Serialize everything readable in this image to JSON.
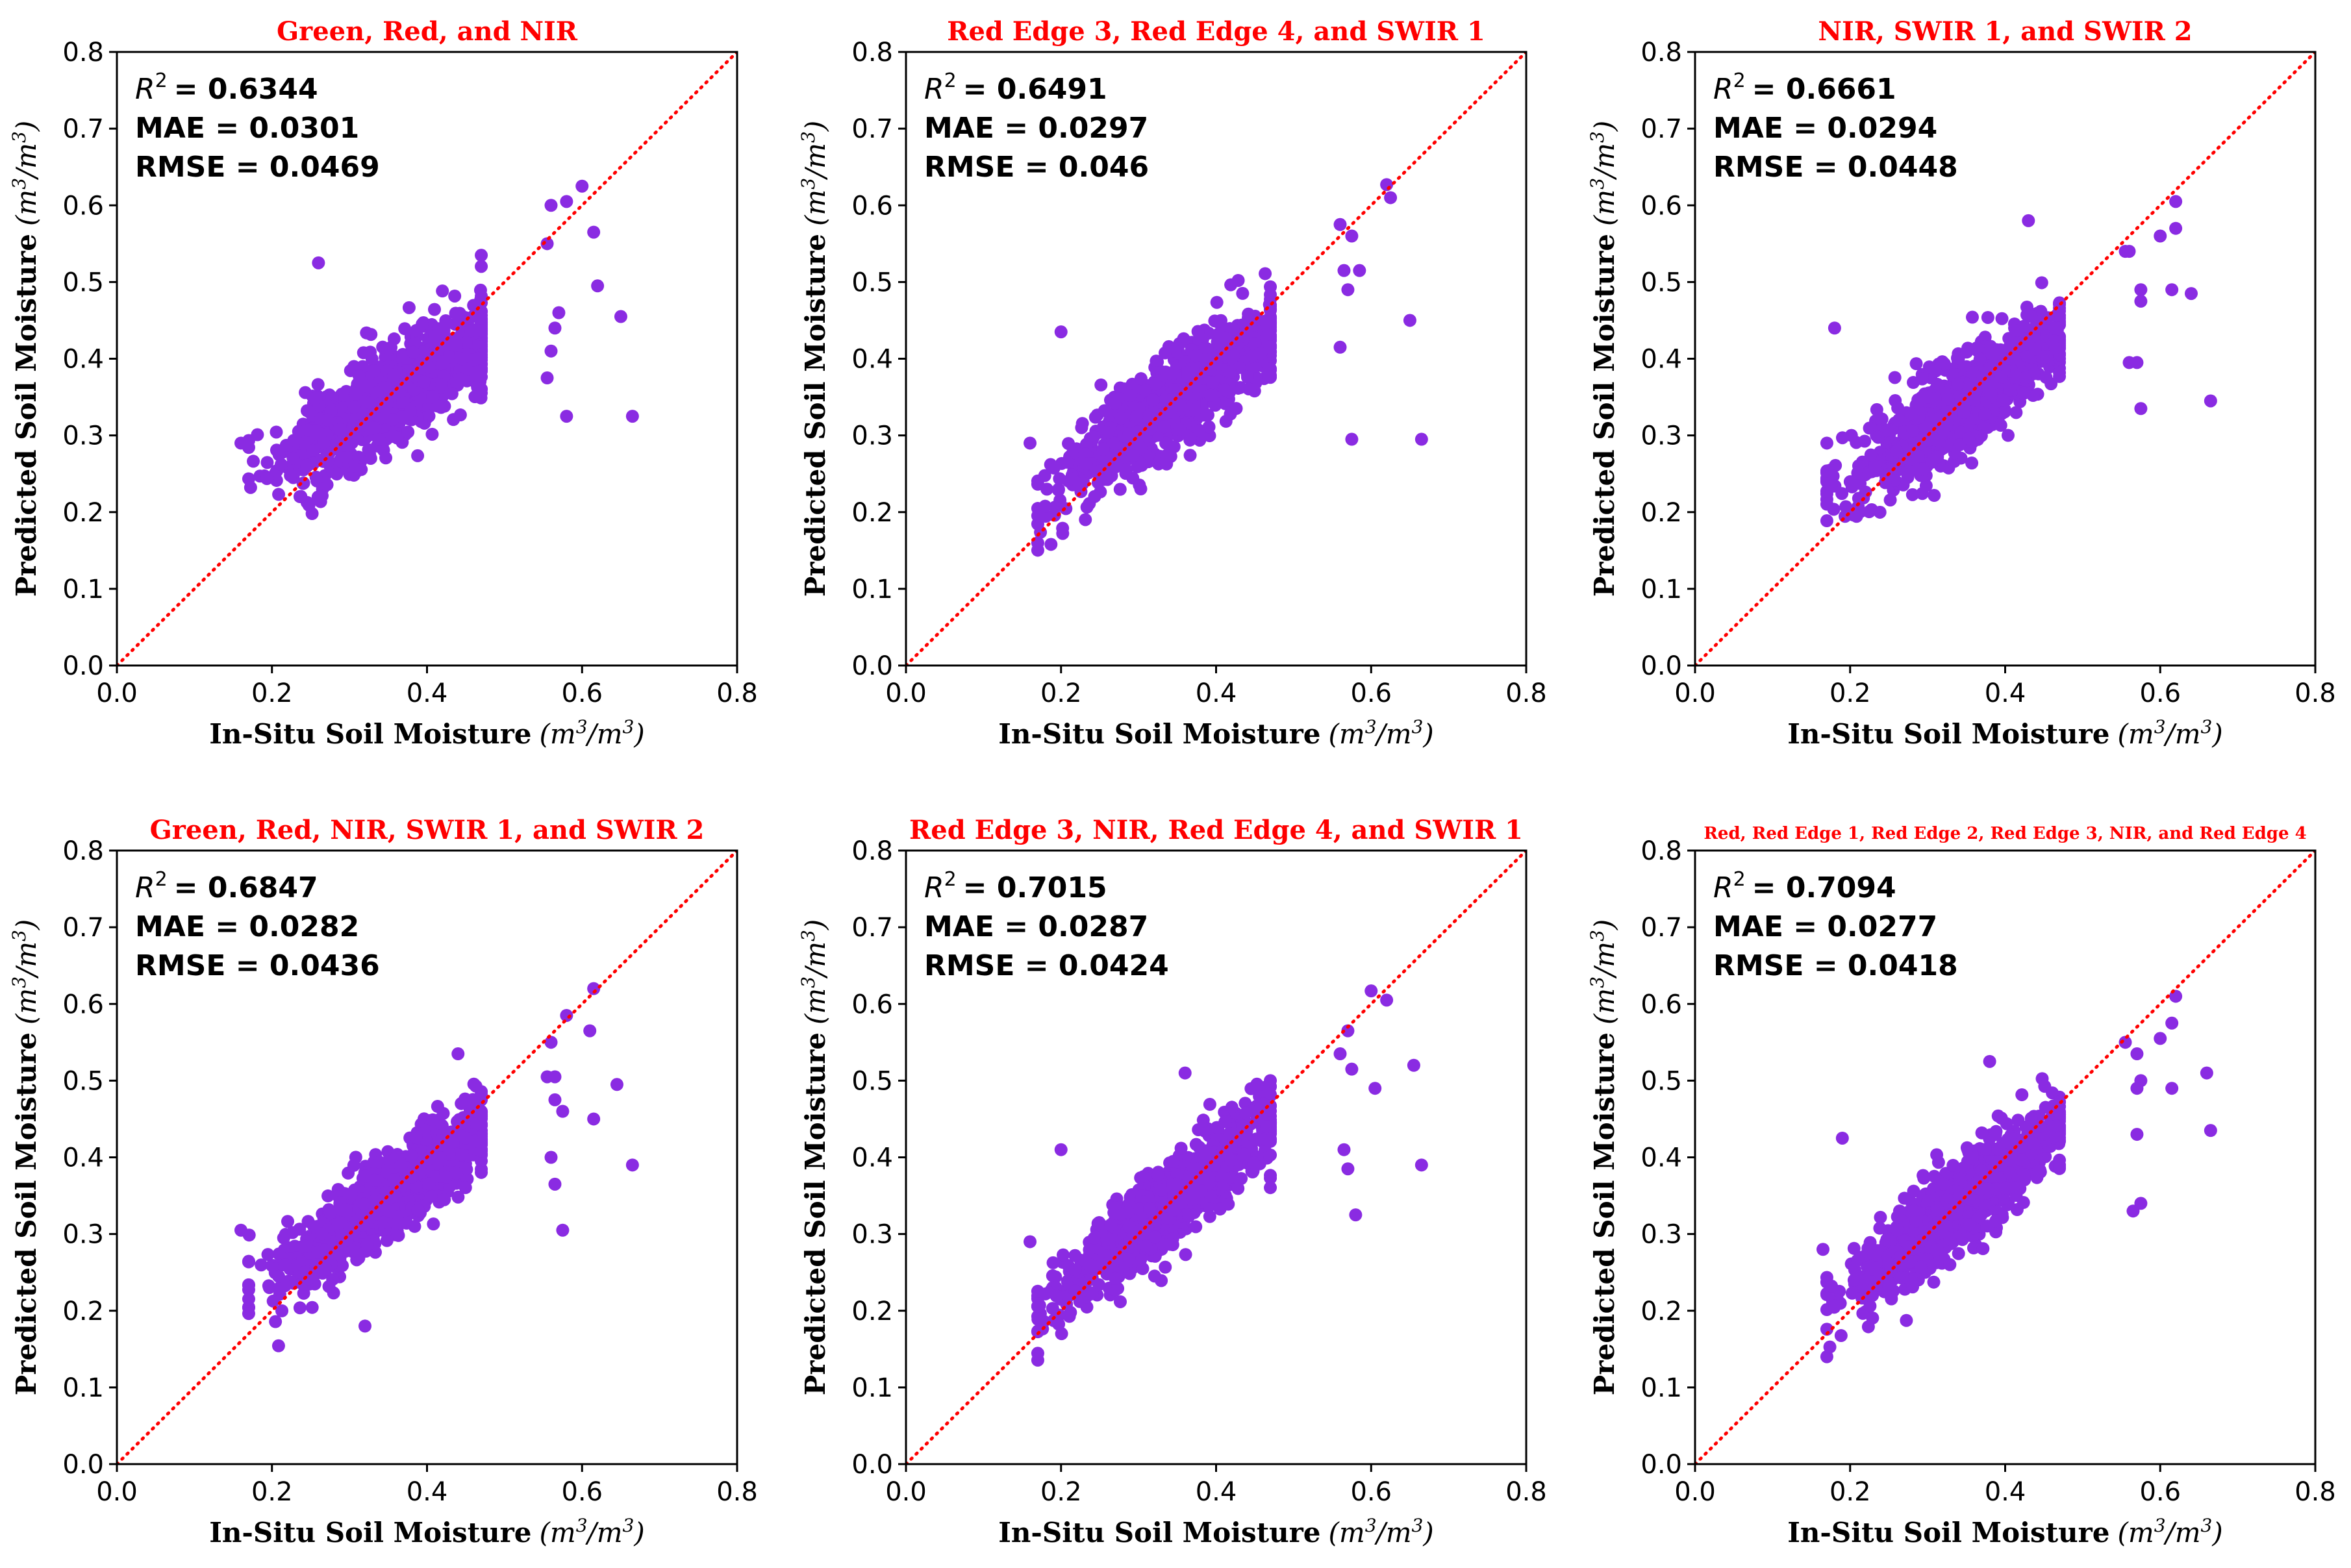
{
  "figure": {
    "marker_color": "#8a2be2",
    "identity_line_color": "#ff0000",
    "title_color": "#ff0000"
  },
  "chart_data": [
    {
      "type": "scatter",
      "title": "Green, Red, and NIR",
      "xlabel": "In-Situ Soil Moisture",
      "ylabel": "Predicted Soil Moisture",
      "unit_base": "m",
      "unit_exp": "3",
      "xlim": [
        0.0,
        0.8
      ],
      "ylim": [
        0.0,
        0.8
      ],
      "xticks": [
        "0.0",
        "0.2",
        "0.4",
        "0.6",
        "0.8"
      ],
      "yticks": [
        "0.0",
        "0.1",
        "0.2",
        "0.3",
        "0.4",
        "0.5",
        "0.6",
        "0.7",
        "0.8"
      ],
      "metrics": {
        "r2_label": "R",
        "r2_exp": "2",
        "r2": "= 0.6344",
        "mae": "MAE = 0.0301",
        "rmse": "RMSE = 0.0469"
      },
      "cloud": {
        "center_x": 0.35,
        "center_y": 0.35,
        "slope": 0.62,
        "spread": 0.032,
        "count": 900,
        "seed": 11
      },
      "outliers": [
        [
          0.16,
          0.29
        ],
        [
          0.26,
          0.525
        ],
        [
          0.56,
          0.6
        ],
        [
          0.58,
          0.605
        ],
        [
          0.6,
          0.625
        ],
        [
          0.615,
          0.565
        ],
        [
          0.555,
          0.55
        ],
        [
          0.57,
          0.46
        ],
        [
          0.565,
          0.44
        ],
        [
          0.56,
          0.41
        ],
        [
          0.555,
          0.375
        ],
        [
          0.58,
          0.325
        ],
        [
          0.62,
          0.495
        ],
        [
          0.65,
          0.455
        ],
        [
          0.665,
          0.325
        ]
      ]
    },
    {
      "type": "scatter",
      "title": "Red Edge 3, Red Edge 4, and SWIR 1",
      "xlabel": "In-Situ Soil Moisture",
      "ylabel": "Predicted Soil Moisture",
      "unit_base": "m",
      "unit_exp": "3",
      "xlim": [
        0.0,
        0.8
      ],
      "ylim": [
        0.0,
        0.8
      ],
      "xticks": [
        "0.0",
        "0.2",
        "0.4",
        "0.6",
        "0.8"
      ],
      "yticks": [
        "0.0",
        "0.1",
        "0.2",
        "0.3",
        "0.4",
        "0.5",
        "0.6",
        "0.7",
        "0.8"
      ],
      "metrics": {
        "r2_label": "R",
        "r2_exp": "2",
        "r2": "= 0.6491",
        "mae": "MAE = 0.0297",
        "rmse": "RMSE = 0.046"
      },
      "cloud": {
        "center_x": 0.34,
        "center_y": 0.34,
        "slope": 0.72,
        "spread": 0.03,
        "count": 900,
        "seed": 23
      },
      "outliers": [
        [
          0.16,
          0.29
        ],
        [
          0.2,
          0.435
        ],
        [
          0.56,
          0.575
        ],
        [
          0.575,
          0.56
        ],
        [
          0.62,
          0.627
        ],
        [
          0.625,
          0.61
        ],
        [
          0.585,
          0.515
        ],
        [
          0.565,
          0.515
        ],
        [
          0.57,
          0.49
        ],
        [
          0.56,
          0.415
        ],
        [
          0.575,
          0.295
        ],
        [
          0.65,
          0.45
        ],
        [
          0.665,
          0.295
        ]
      ]
    },
    {
      "type": "scatter",
      "title": "NIR, SWIR 1, and SWIR 2",
      "xlabel": "In-Situ Soil Moisture",
      "ylabel": "Predicted Soil Moisture",
      "unit_base": "m",
      "unit_exp": "3",
      "xlim": [
        0.0,
        0.8
      ],
      "ylim": [
        0.0,
        0.8
      ],
      "xticks": [
        "0.0",
        "0.2",
        "0.4",
        "0.6",
        "0.8"
      ],
      "yticks": [
        "0.0",
        "0.1",
        "0.2",
        "0.3",
        "0.4",
        "0.5",
        "0.6",
        "0.7",
        "0.8"
      ],
      "metrics": {
        "r2_label": "R",
        "r2_exp": "2",
        "r2": "= 0.6661",
        "mae": "MAE = 0.0294",
        "rmse": "RMSE = 0.0448"
      },
      "cloud": {
        "center_x": 0.34,
        "center_y": 0.34,
        "slope": 0.7,
        "spread": 0.03,
        "count": 900,
        "seed": 37
      },
      "outliers": [
        [
          0.17,
          0.29
        ],
        [
          0.18,
          0.44
        ],
        [
          0.43,
          0.58
        ],
        [
          0.555,
          0.54
        ],
        [
          0.56,
          0.54
        ],
        [
          0.575,
          0.49
        ],
        [
          0.575,
          0.475
        ],
        [
          0.6,
          0.56
        ],
        [
          0.62,
          0.605
        ],
        [
          0.62,
          0.57
        ],
        [
          0.615,
          0.49
        ],
        [
          0.64,
          0.485
        ],
        [
          0.56,
          0.395
        ],
        [
          0.57,
          0.395
        ],
        [
          0.575,
          0.335
        ],
        [
          0.665,
          0.345
        ]
      ]
    },
    {
      "type": "scatter",
      "title": "Green, Red, NIR, SWIR 1, and SWIR 2",
      "xlabel": "In-Situ Soil Moisture",
      "ylabel": "Predicted Soil Moisture",
      "unit_base": "m",
      "unit_exp": "3",
      "xlim": [
        0.0,
        0.8
      ],
      "ylim": [
        0.0,
        0.8
      ],
      "xticks": [
        "0.0",
        "0.2",
        "0.4",
        "0.6",
        "0.8"
      ],
      "yticks": [
        "0.0",
        "0.1",
        "0.2",
        "0.3",
        "0.4",
        "0.5",
        "0.6",
        "0.7",
        "0.8"
      ],
      "metrics": {
        "r2_label": "R",
        "r2_exp": "2",
        "r2": "= 0.6847",
        "mae": "MAE = 0.0282",
        "rmse": "RMSE = 0.0436"
      },
      "cloud": {
        "center_x": 0.35,
        "center_y": 0.35,
        "slope": 0.72,
        "spread": 0.028,
        "count": 900,
        "seed": 41
      },
      "outliers": [
        [
          0.16,
          0.305
        ],
        [
          0.32,
          0.18
        ],
        [
          0.44,
          0.535
        ],
        [
          0.555,
          0.505
        ],
        [
          0.565,
          0.505
        ],
        [
          0.56,
          0.55
        ],
        [
          0.58,
          0.585
        ],
        [
          0.61,
          0.565
        ],
        [
          0.615,
          0.62
        ],
        [
          0.565,
          0.475
        ],
        [
          0.575,
          0.46
        ],
        [
          0.56,
          0.4
        ],
        [
          0.565,
          0.365
        ],
        [
          0.575,
          0.305
        ],
        [
          0.645,
          0.495
        ],
        [
          0.615,
          0.45
        ],
        [
          0.665,
          0.39
        ]
      ]
    },
    {
      "type": "scatter",
      "title": "Red Edge 3, NIR, Red Edge 4, and SWIR 1",
      "xlabel": "In-Situ Soil Moisture",
      "ylabel": "Predicted Soil Moisture",
      "unit_base": "m",
      "unit_exp": "3",
      "xlim": [
        0.0,
        0.8
      ],
      "ylim": [
        0.0,
        0.8
      ],
      "xticks": [
        "0.0",
        "0.2",
        "0.4",
        "0.6",
        "0.8"
      ],
      "yticks": [
        "0.0",
        "0.1",
        "0.2",
        "0.3",
        "0.4",
        "0.5",
        "0.6",
        "0.7",
        "0.8"
      ],
      "metrics": {
        "r2_label": "R",
        "r2_exp": "2",
        "r2": "= 0.7015",
        "mae": "MAE = 0.0287",
        "rmse": "RMSE = 0.0424"
      },
      "cloud": {
        "center_x": 0.34,
        "center_y": 0.34,
        "slope": 0.8,
        "spread": 0.027,
        "count": 900,
        "seed": 53
      },
      "outliers": [
        [
          0.16,
          0.29
        ],
        [
          0.2,
          0.41
        ],
        [
          0.36,
          0.51
        ],
        [
          0.56,
          0.535
        ],
        [
          0.57,
          0.565
        ],
        [
          0.6,
          0.617
        ],
        [
          0.62,
          0.605
        ],
        [
          0.575,
          0.515
        ],
        [
          0.605,
          0.49
        ],
        [
          0.655,
          0.52
        ],
        [
          0.565,
          0.41
        ],
        [
          0.57,
          0.385
        ],
        [
          0.58,
          0.325
        ],
        [
          0.665,
          0.39
        ]
      ]
    },
    {
      "type": "scatter",
      "title": "Red, Red Edge 1, Red Edge 2, Red Edge 3, NIR, and Red Edge 4",
      "xlabel": "In-Situ Soil Moisture",
      "ylabel": "Predicted Soil Moisture",
      "unit_base": "m",
      "unit_exp": "3",
      "xlim": [
        0.0,
        0.8
      ],
      "ylim": [
        0.0,
        0.8
      ],
      "xticks": [
        "0.0",
        "0.2",
        "0.4",
        "0.6",
        "0.8"
      ],
      "yticks": [
        "0.0",
        "0.1",
        "0.2",
        "0.3",
        "0.4",
        "0.5",
        "0.6",
        "0.7",
        "0.8"
      ],
      "metrics": {
        "r2_label": "R",
        "r2_exp": "2",
        "r2": "= 0.7094",
        "mae": "MAE = 0.0277",
        "rmse": "RMSE = 0.0418"
      },
      "cloud": {
        "center_x": 0.34,
        "center_y": 0.34,
        "slope": 0.8,
        "spread": 0.027,
        "count": 900,
        "seed": 67
      },
      "outliers": [
        [
          0.165,
          0.28
        ],
        [
          0.19,
          0.425
        ],
        [
          0.38,
          0.525
        ],
        [
          0.555,
          0.55
        ],
        [
          0.57,
          0.535
        ],
        [
          0.6,
          0.555
        ],
        [
          0.62,
          0.61
        ],
        [
          0.615,
          0.575
        ],
        [
          0.575,
          0.5
        ],
        [
          0.57,
          0.49
        ],
        [
          0.615,
          0.49
        ],
        [
          0.66,
          0.51
        ],
        [
          0.57,
          0.43
        ],
        [
          0.565,
          0.33
        ],
        [
          0.575,
          0.34
        ],
        [
          0.665,
          0.435
        ]
      ]
    }
  ]
}
